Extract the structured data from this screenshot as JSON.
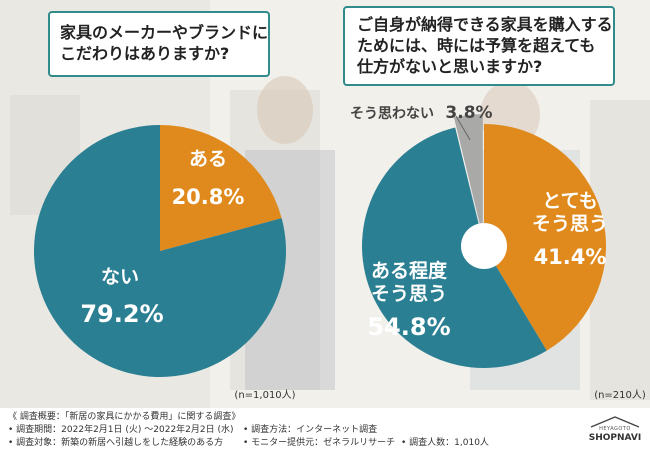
{
  "chart_data": [
    {
      "type": "pie",
      "title": "家具のメーカーやブランドにこだわりはありますか?",
      "slices": [
        {
          "label": "ある",
          "value": 20.8,
          "value_text": "20.8%",
          "color": "#e08a1e"
        },
        {
          "label": "ない",
          "value": 79.2,
          "value_text": "79.2%",
          "color": "#2b7f92"
        }
      ],
      "sample": "(n=1,010人)"
    },
    {
      "type": "pie",
      "title": "ご自身が納得できる家具を購入するためには、時には予算を超えても仕方がないと思いますか?",
      "slices": [
        {
          "label": "とてもそう思う",
          "value": 41.4,
          "value_text": "41.4%",
          "color": "#e08a1e"
        },
        {
          "label": "ある程度そう思う",
          "value": 54.8,
          "value_text": "54.8%",
          "color": "#2b7f92"
        },
        {
          "label": "そう思わない",
          "value": 3.8,
          "value_text": "3.8%",
          "color": "#a9aaa7"
        }
      ],
      "sample": "(n=210人)"
    }
  ],
  "q1": {
    "lines": [
      "家具のメーカーやブランドに",
      "こだわりはありますか?"
    ]
  },
  "q2": {
    "lines": [
      "ご自身が納得できる家具を購入する",
      "ためには、時には予算を超えても",
      "仕方がないと思いますか?"
    ]
  },
  "labels": {
    "aru": "ある",
    "aru_pct": "20.8%",
    "nai": "ない",
    "nai_pct": "79.2%",
    "totemo_1": "とても",
    "totemo_2": "そう思う",
    "totemo_pct": "41.4%",
    "aruteido_1": "ある程度",
    "aruteido_2": "そう思う",
    "aruteido_pct": "54.8%",
    "soomowanai": "そう思わない",
    "soomowanai_pct": "3.8%"
  },
  "footer": {
    "summary": "《 調査概要：「新居の家具にかかる費用」に関する調査》",
    "period": "• 調査期間：2022年2月1日 (火) 〜2022年2月2日 (水)",
    "method": "• 調査方法：インターネット調査",
    "target": "• 調査対象：新築の新居へ引越しをした経験のある方",
    "provider": "• モニター提供元：ゼネラルリサーチ",
    "count": "• 調査人数：1,010人",
    "logo_small": "HEYAGOTO",
    "logo_main": "SHOPNAVI"
  },
  "colors": {
    "teal": "#2b7f92",
    "orange": "#e08a1e",
    "gray": "#a9aaa7",
    "frame": "#2f8c8b"
  }
}
